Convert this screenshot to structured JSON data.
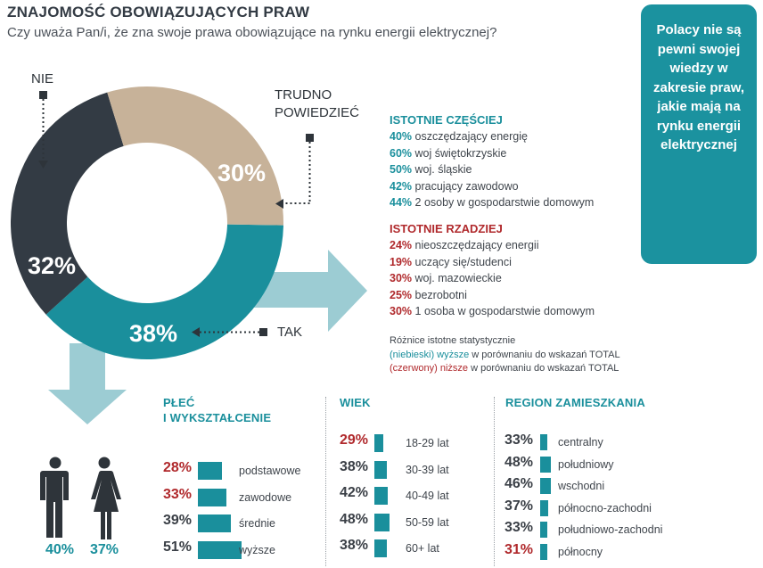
{
  "header": {
    "title": "ZNAJOMOŚĆ OBOWIĄZUJĄCYCH PRAW",
    "subtitle": "Czy uważa Pan/i, że zna swoje prawa obowiązujące na rynku energii elektrycznej?"
  },
  "callout": "Polacy nie są pewni swojej wiedzy w zakresie praw, jakie mają na rynku energii elektrycznej",
  "colors": {
    "teal": "#1a8f9c",
    "dark": "#333b44",
    "beige": "#c7b299",
    "red": "#b0292c",
    "arrow": "#9cccd3"
  },
  "donut_labels": {
    "nie": "NIE",
    "trudno_line1": "TRUDNO",
    "trudno_line2": "POWIEDZIEĆ",
    "tak": "TAK"
  },
  "higher": {
    "title": "ISTOTNIE CZĘŚCIEJ",
    "items": [
      {
        "pct": "40%",
        "label": "oszczędzający energię"
      },
      {
        "pct": "60%",
        "label": "woj świętokrzyskie"
      },
      {
        "pct": "50%",
        "label": "woj. śląskie"
      },
      {
        "pct": "42%",
        "label": "pracujący zawodowo"
      },
      {
        "pct": "44%",
        "label": "2 osoby w gospodarstwie domowym"
      }
    ]
  },
  "lower": {
    "title": "ISTOTNIE RZADZIEJ",
    "items": [
      {
        "pct": "24%",
        "label": "nieoszczędzający energii"
      },
      {
        "pct": "19%",
        "label": "uczący się/studenci"
      },
      {
        "pct": "30%",
        "label": "woj. mazowieckie"
      },
      {
        "pct": "25%",
        "label": "bezrobotni"
      },
      {
        "pct": "30%",
        "label": "1 osoba w gospodarstwie domowym"
      }
    ]
  },
  "notes": {
    "line1": "Różnice istotne statystycznie",
    "blue_word": "(niebieski) wyższe",
    "blue_rest": " w porównaniu do wskazań TOTAL",
    "red_word": "(czerwony) niższe",
    "red_rest": " w porównaniu do wskazań TOTAL"
  },
  "gender": {
    "male": "40%",
    "female": "37%"
  },
  "columns": {
    "edu": {
      "title_line1": "PŁEĆ",
      "title_line2": "I WYKSZTAŁCENIE"
    },
    "age": {
      "title": "WIEK"
    },
    "region": {
      "title": "REGION ZAMIESZKANIA"
    }
  },
  "chart_data": [
    {
      "type": "pie",
      "title": "Czy uważa Pan/i, że zna swoje prawa obowiązujące na rynku energii elektrycznej?",
      "categories": [
        "TAK",
        "NIE",
        "TRUDNO POWIEDZIEĆ"
      ],
      "values": [
        38,
        32,
        30
      ],
      "labels": [
        "38%",
        "32%",
        "30%"
      ],
      "colors": [
        "#1a8f9c",
        "#333b44",
        "#c7b299"
      ]
    },
    {
      "type": "bar",
      "categories": [
        "podstawowe",
        "zawodowe",
        "średnie",
        "wyższe"
      ],
      "values": [
        28,
        33,
        39,
        51
      ],
      "labels": [
        "28%",
        "33%",
        "39%",
        "51%"
      ],
      "highlight": [
        "lower",
        "lower",
        "none",
        "none"
      ]
    },
    {
      "type": "bar",
      "categories": [
        "18-29 lat",
        "30-39 lat",
        "40-49 lat",
        "50-59 lat",
        "60+ lat"
      ],
      "values": [
        29,
        38,
        42,
        48,
        38
      ],
      "labels": [
        "29%",
        "38%",
        "42%",
        "48%",
        "38%"
      ],
      "highlight": [
        "lower",
        "none",
        "none",
        "higher",
        "none"
      ]
    },
    {
      "type": "bar",
      "categories": [
        "centralny",
        "południowy",
        "wschodni",
        "północno-zachodni",
        "południowo-zachodni",
        "północny"
      ],
      "values": [
        33,
        48,
        46,
        37,
        33,
        31
      ],
      "labels": [
        "33%",
        "48%",
        "46%",
        "37%",
        "33%",
        "31%"
      ],
      "highlight": [
        "none",
        "higher",
        "higher",
        "none",
        "none",
        "lower"
      ]
    }
  ]
}
